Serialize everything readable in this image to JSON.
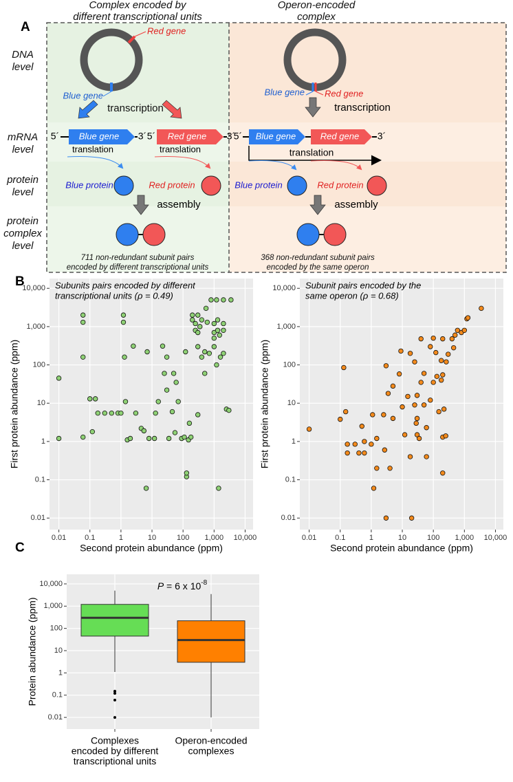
{
  "panel_labels": [
    "A",
    "B",
    "C"
  ],
  "diagram": {
    "left_header": [
      "Complex encoded by",
      "different transcriptional units"
    ],
    "right_header": [
      "Operon-encoded",
      "complex"
    ],
    "row_labels": [
      [
        "DNA",
        "level"
      ],
      [
        "mRNA",
        "level"
      ],
      [
        "protein",
        "level"
      ],
      [
        "protein",
        "complex",
        "level"
      ]
    ],
    "left": {
      "red_gene": "Red gene",
      "blue_gene": "Blue gene",
      "transcription": "transcription",
      "five_a": "5´",
      "blue_box": "Blue gene",
      "three_a": "3´",
      "five_b": "5´",
      "red_box": "Red gene",
      "three_b": "3´",
      "translation_a": "translation",
      "translation_b": "translation",
      "blue_protein": "Blue protein",
      "red_protein": "Red protein",
      "assembly": "assembly",
      "caption": [
        "711 non-redundant subunit pairs",
        "encoded by different transcriptional units"
      ]
    },
    "right": {
      "blue_gene": "Blue gene",
      "red_gene": "Red gene",
      "transcription": "transcription",
      "five": "5´",
      "blue_box": "Blue gene",
      "red_box": "Red gene",
      "three": "3´",
      "translation": "translation",
      "blue_protein": "Blue protein",
      "red_protein": "Red protein",
      "assembly": "assembly",
      "caption": [
        "368 non-redundant subunit pairs",
        "encoded by the same operon"
      ]
    }
  },
  "chart_data": [
    {
      "type": "scatter",
      "title": [
        "Subunits pairs encoded by different",
        "transcriptional units (ρ = 0.49)"
      ],
      "x_label": "Second protein abundance (ppm)",
      "y_label": "First protein abundance (ppm)",
      "log_x": true,
      "log_y": true,
      "grid": true,
      "color": "#8fd175",
      "xlim": [
        0.005,
        18000
      ],
      "ylim": [
        0.005,
        18000
      ],
      "xticks": [
        0.01,
        0.1,
        1,
        10,
        100,
        {
          "value": 1000,
          "label": "1,000"
        },
        {
          "value": 10000,
          "label": "10,000"
        }
      ],
      "yticks": [
        0.01,
        0.1,
        1,
        10,
        100,
        {
          "value": 1000,
          "label": "1,000"
        },
        {
          "value": 10000,
          "label": "10,000"
        }
      ],
      "x": [
        0.01,
        0.01,
        0.06,
        0.06,
        0.06,
        0.06,
        0.1,
        0.12,
        0.15,
        0.18,
        0.3,
        0.5,
        0.8,
        1,
        1.2,
        1.2,
        1.3,
        1.4,
        1.6,
        2,
        2.5,
        3,
        4.5,
        5.5,
        6.5,
        7,
        8,
        12,
        13,
        16,
        22,
        25,
        30,
        30,
        35,
        45,
        50,
        55,
        60,
        70,
        90,
        110,
        120,
        130,
        130,
        150,
        160,
        180,
        200,
        200,
        250,
        250,
        300,
        300,
        300,
        300,
        350,
        400,
        400,
        500,
        500,
        550,
        600,
        700,
        800,
        1000,
        1000,
        1000,
        1000,
        1200,
        1300,
        1300,
        1500,
        1600,
        1400,
        2000,
        2000,
        2000,
        2000,
        2500,
        3000,
        3500,
        1200
      ],
      "values": [
        45,
        1.2,
        2000,
        1300,
        160,
        1.3,
        13,
        1.8,
        13,
        5.5,
        5.5,
        5.5,
        5.5,
        5.5,
        2000,
        1300,
        160,
        11,
        1.1,
        1.2,
        310,
        5.5,
        2.2,
        1.9,
        0.06,
        220,
        1.2,
        1.2,
        5.5,
        11,
        310,
        60,
        160,
        22,
        1.2,
        6,
        60,
        1.7,
        35,
        11,
        1.2,
        1.3,
        220,
        0.12,
        0.15,
        1.1,
        3,
        1.3,
        2000,
        1500,
        1200,
        800,
        2000,
        700,
        300,
        5,
        1000,
        1500,
        160,
        220,
        60,
        3000,
        1300,
        200,
        5000,
        1200,
        700,
        500,
        300,
        5000,
        1500,
        800,
        600,
        160,
        0.06,
        5000,
        1200,
        800,
        200,
        7,
        6.5,
        5000,
        100
      ]
    },
    {
      "type": "scatter",
      "title": [
        "Subunit pairs encoded by the",
        "same operon (ρ = 0.68)"
      ],
      "x_label": "Second protein abundance (ppm)",
      "y_label": "First protein abundance (ppm)",
      "log_x": true,
      "log_y": true,
      "grid": true,
      "color": "#f38a1c",
      "xlim": [
        0.005,
        18000
      ],
      "ylim": [
        0.005,
        18000
      ],
      "xticks": [
        0.01,
        0.1,
        1,
        10,
        100,
        {
          "value": 1000,
          "label": "1,000"
        },
        {
          "value": 10000,
          "label": "10,000"
        }
      ],
      "yticks": [
        0.01,
        0.1,
        1,
        10,
        100,
        {
          "value": 1000,
          "label": "1,000"
        },
        {
          "value": 10000,
          "label": "10,000"
        }
      ],
      "x": [
        0.01,
        0.1,
        0.13,
        0.15,
        0.17,
        0.17,
        0.3,
        0.4,
        0.5,
        0.6,
        0.6,
        1,
        1.1,
        1.2,
        1.5,
        1.5,
        2.5,
        2.7,
        3,
        3,
        3.5,
        4,
        5,
        5,
        8,
        9,
        10,
        12,
        15,
        18,
        18,
        20,
        25,
        25,
        28,
        30,
        30,
        30,
        35,
        40,
        40,
        50,
        50,
        60,
        60,
        80,
        80,
        100,
        100,
        120,
        130,
        150,
        180,
        180,
        200,
        200,
        200,
        200,
        220,
        250,
        260,
        300,
        400,
        450,
        500,
        600,
        800,
        1000,
        1200,
        1300,
        3500
      ],
      "values": [
        2.1,
        3.8,
        85,
        6,
        0.5,
        0.85,
        0.85,
        0.5,
        2.5,
        0.5,
        1,
        0.85,
        5,
        0.06,
        1.2,
        0.2,
        5,
        0.6,
        0.01,
        95,
        18,
        0.2,
        4,
        28,
        58,
        230,
        8,
        1.5,
        15,
        200,
        0.4,
        0.01,
        120,
        9,
        3,
        1.5,
        4,
        16,
        1.2,
        35,
        480,
        60,
        9,
        0.4,
        2.3,
        300,
        12,
        500,
        35,
        210,
        50,
        6,
        40,
        130,
        480,
        1.3,
        0.15,
        55,
        7,
        1.4,
        120,
        190,
        480,
        280,
        600,
        800,
        700,
        800,
        1600,
        1700,
        3000
      ]
    },
    {
      "type": "box",
      "annotation": [
        "P",
        " = 6 x 10",
        "-8"
      ],
      "y_label": "Protein abundance (ppm)",
      "log_y": true,
      "grid": true,
      "ylim": [
        0.003,
        27000
      ],
      "yticks": [
        0.01,
        0.1,
        1,
        10,
        100,
        {
          "value": 1000,
          "label": "1,000"
        },
        {
          "value": 10000,
          "label": "10,000"
        }
      ],
      "categories": [
        [
          "Complexes",
          "encoded by different",
          "transcriptional units"
        ],
        [
          "Operon-encoded",
          "complexes"
        ]
      ],
      "boxes": [
        {
          "min": 1.1,
          "q1": 45,
          "median": 300,
          "q3": 1200,
          "max": 5000,
          "outliers": [
            0.15,
            0.12,
            0.06,
            0.01
          ],
          "color": "#66dd55"
        },
        {
          "min": 0.01,
          "q1": 3,
          "median": 30,
          "q3": 220,
          "max": 3500,
          "outliers": [],
          "color": "#ff8000"
        }
      ]
    }
  ]
}
